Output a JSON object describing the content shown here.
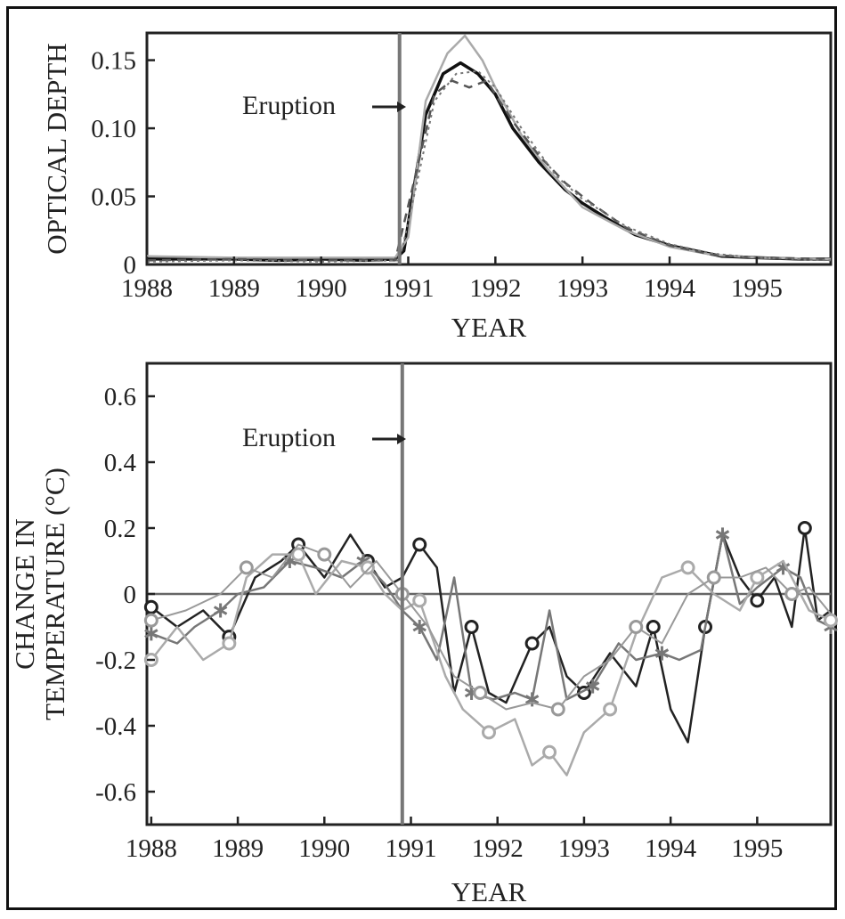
{
  "chart_data": [
    {
      "type": "line",
      "xlabel": "YEAR",
      "ylabel": "OPTICAL DEPTH",
      "xlim": [
        1988,
        1995.85
      ],
      "ylim": [
        0,
        0.17
      ],
      "x_ticks": [
        "1988",
        "1989",
        "1990",
        "1991",
        "1992",
        "1993",
        "1994",
        "1995"
      ],
      "y_ticks": [
        "0",
        "0.05",
        "0.10",
        "0.15"
      ],
      "annotation": "Eruption",
      "eruption_x": 1990.9,
      "series": [
        {
          "style": "solid",
          "points": [
            [
              1988,
              0.004
            ],
            [
              1988.5,
              0.004
            ],
            [
              1989,
              0.004
            ],
            [
              1989.5,
              0.003
            ],
            [
              1990,
              0.004
            ],
            [
              1990.5,
              0.003
            ],
            [
              1990.85,
              0.004
            ],
            [
              1990.95,
              0.01
            ],
            [
              1991.05,
              0.05
            ],
            [
              1991.2,
              0.11
            ],
            [
              1991.4,
              0.14
            ],
            [
              1991.6,
              0.148
            ],
            [
              1991.8,
              0.14
            ],
            [
              1992,
              0.125
            ],
            [
              1992.2,
              0.1
            ],
            [
              1992.5,
              0.075
            ],
            [
              1992.8,
              0.055
            ],
            [
              1993,
              0.045
            ],
            [
              1993.3,
              0.033
            ],
            [
              1993.6,
              0.022
            ],
            [
              1994,
              0.014
            ],
            [
              1994.3,
              0.01
            ],
            [
              1994.6,
              0.006
            ],
            [
              1995,
              0.005
            ],
            [
              1995.5,
              0.004
            ],
            [
              1995.85,
              0.004
            ]
          ]
        },
        {
          "style": "light",
          "points": [
            [
              1988,
              0.006
            ],
            [
              1989,
              0.005
            ],
            [
              1990,
              0.005
            ],
            [
              1990.85,
              0.005
            ],
            [
              1991,
              0.02
            ],
            [
              1991.2,
              0.12
            ],
            [
              1991.45,
              0.155
            ],
            [
              1991.65,
              0.168
            ],
            [
              1991.85,
              0.15
            ],
            [
              1992,
              0.13
            ],
            [
              1992.3,
              0.095
            ],
            [
              1992.6,
              0.07
            ],
            [
              1993,
              0.042
            ],
            [
              1993.5,
              0.025
            ],
            [
              1994,
              0.013
            ],
            [
              1994.5,
              0.007
            ],
            [
              1995,
              0.005
            ],
            [
              1995.85,
              0.004
            ]
          ]
        },
        {
          "style": "dashed",
          "points": [
            [
              1988,
              0.003
            ],
            [
              1989,
              0.004
            ],
            [
              1990,
              0.003
            ],
            [
              1990.85,
              0.003
            ],
            [
              1991.1,
              0.07
            ],
            [
              1991.3,
              0.125
            ],
            [
              1991.5,
              0.135
            ],
            [
              1991.7,
              0.13
            ],
            [
              1991.9,
              0.135
            ],
            [
              1992.2,
              0.105
            ],
            [
              1992.5,
              0.08
            ],
            [
              1992.8,
              0.06
            ],
            [
              1993.1,
              0.045
            ],
            [
              1993.5,
              0.027
            ],
            [
              1994,
              0.014
            ],
            [
              1994.5,
              0.007
            ],
            [
              1995,
              0.005
            ],
            [
              1995.85,
              0.004
            ]
          ]
        },
        {
          "style": "dotted",
          "points": [
            [
              1988,
              0.002
            ],
            [
              1989,
              0.003
            ],
            [
              1990,
              0.002
            ],
            [
              1990.9,
              0.003
            ],
            [
              1991.1,
              0.06
            ],
            [
              1991.3,
              0.12
            ],
            [
              1991.55,
              0.14
            ],
            [
              1991.8,
              0.142
            ],
            [
              1992,
              0.13
            ],
            [
              1992.3,
              0.1
            ],
            [
              1992.7,
              0.065
            ],
            [
              1993,
              0.048
            ],
            [
              1993.5,
              0.028
            ],
            [
              1994,
              0.015
            ],
            [
              1994.5,
              0.008
            ],
            [
              1995,
              0.005
            ],
            [
              1995.85,
              0.003
            ]
          ]
        }
      ]
    },
    {
      "type": "line",
      "xlabel": "YEAR",
      "ylabel_lines": [
        "CHANGE IN",
        "TEMPERATURE (°C)"
      ],
      "xlim": [
        1987.95,
        1995.85
      ],
      "ylim": [
        -0.7,
        0.7
      ],
      "x_ticks": [
        "1988",
        "1989",
        "1990",
        "1991",
        "1992",
        "1993",
        "1994",
        "1995"
      ],
      "y_ticks": [
        "-0.6",
        "-0.4",
        "-0.2",
        "0",
        "0.2",
        "0.4",
        "0.6"
      ],
      "annotation": "Eruption",
      "eruption_x": 1990.9,
      "series": [
        {
          "style": "dark",
          "marker": "o",
          "points": [
            [
              1988,
              -0.04
            ],
            [
              1988.3,
              -0.1
            ],
            [
              1988.6,
              -0.05
            ],
            [
              1988.9,
              -0.13
            ],
            [
              1989.2,
              0.05
            ],
            [
              1989.5,
              0.1
            ],
            [
              1989.7,
              0.15
            ],
            [
              1990,
              0.05
            ],
            [
              1990.3,
              0.18
            ],
            [
              1990.5,
              0.1
            ],
            [
              1990.7,
              0.02
            ],
            [
              1990.9,
              0.05
            ],
            [
              1991.1,
              0.15
            ],
            [
              1991.3,
              0.08
            ],
            [
              1991.5,
              -0.3
            ],
            [
              1991.7,
              -0.1
            ],
            [
              1991.9,
              -0.3
            ],
            [
              1992.1,
              -0.33
            ],
            [
              1992.4,
              -0.15
            ],
            [
              1992.6,
              -0.1
            ],
            [
              1992.8,
              -0.25
            ],
            [
              1993,
              -0.3
            ],
            [
              1993.3,
              -0.18
            ],
            [
              1993.6,
              -0.28
            ],
            [
              1993.8,
              -0.1
            ],
            [
              1994,
              -0.35
            ],
            [
              1994.2,
              -0.45
            ],
            [
              1994.4,
              -0.1
            ],
            [
              1994.6,
              0.18
            ],
            [
              1994.8,
              0.05
            ],
            [
              1995,
              -0.02
            ],
            [
              1995.2,
              0.05
            ],
            [
              1995.4,
              -0.1
            ],
            [
              1995.55,
              0.2
            ],
            [
              1995.7,
              -0.08
            ],
            [
              1995.85,
              -0.05
            ]
          ]
        },
        {
          "style": "gray",
          "marker": "*",
          "points": [
            [
              1988,
              -0.12
            ],
            [
              1988.3,
              -0.15
            ],
            [
              1988.5,
              -0.1
            ],
            [
              1988.8,
              -0.05
            ],
            [
              1989,
              0.0
            ],
            [
              1989.3,
              0.02
            ],
            [
              1989.6,
              0.1
            ],
            [
              1989.9,
              0.08
            ],
            [
              1990.2,
              0.05
            ],
            [
              1990.45,
              0.1
            ],
            [
              1990.7,
              0.03
            ],
            [
              1990.9,
              -0.05
            ],
            [
              1991.1,
              -0.1
            ],
            [
              1991.3,
              -0.2
            ],
            [
              1991.5,
              0.05
            ],
            [
              1991.7,
              -0.3
            ],
            [
              1991.95,
              -0.32
            ],
            [
              1992.2,
              -0.3
            ],
            [
              1992.4,
              -0.32
            ],
            [
              1992.6,
              -0.05
            ],
            [
              1992.8,
              -0.32
            ],
            [
              1993.1,
              -0.28
            ],
            [
              1993.4,
              -0.15
            ],
            [
              1993.6,
              -0.2
            ],
            [
              1993.9,
              -0.18
            ],
            [
              1994.1,
              -0.2
            ],
            [
              1994.35,
              -0.17
            ],
            [
              1994.6,
              0.18
            ],
            [
              1994.8,
              -0.03
            ],
            [
              1995,
              0.02
            ],
            [
              1995.3,
              0.08
            ],
            [
              1995.5,
              0.05
            ],
            [
              1995.7,
              -0.08
            ],
            [
              1995.85,
              -0.1
            ]
          ]
        },
        {
          "style": "light",
          "marker": "o",
          "points": [
            [
              1988,
              -0.2
            ],
            [
              1988.3,
              -0.1
            ],
            [
              1988.6,
              -0.2
            ],
            [
              1988.9,
              -0.15
            ],
            [
              1989.1,
              0.05
            ],
            [
              1989.4,
              0.12
            ],
            [
              1989.7,
              0.12
            ],
            [
              1989.9,
              0.0
            ],
            [
              1990.2,
              0.1
            ],
            [
              1990.5,
              0.08
            ],
            [
              1990.7,
              0.0
            ],
            [
              1990.9,
              -0.05
            ],
            [
              1991.1,
              -0.02
            ],
            [
              1991.4,
              -0.25
            ],
            [
              1991.6,
              -0.35
            ],
            [
              1991.9,
              -0.42
            ],
            [
              1992.2,
              -0.38
            ],
            [
              1992.4,
              -0.52
            ],
            [
              1992.6,
              -0.48
            ],
            [
              1992.8,
              -0.55
            ],
            [
              1993,
              -0.42
            ],
            [
              1993.3,
              -0.35
            ],
            [
              1993.6,
              -0.12
            ],
            [
              1993.9,
              0.05
            ],
            [
              1994.2,
              0.08
            ],
            [
              1994.5,
              0.0
            ],
            [
              1994.8,
              -0.05
            ],
            [
              1995,
              0.05
            ],
            [
              1995.3,
              0.1
            ],
            [
              1995.6,
              -0.05
            ],
            [
              1995.85,
              -0.08
            ]
          ]
        },
        {
          "style": "mid",
          "marker": "o",
          "points": [
            [
              1988,
              -0.08
            ],
            [
              1988.4,
              -0.05
            ],
            [
              1988.8,
              0.0
            ],
            [
              1989.1,
              0.08
            ],
            [
              1989.4,
              0.05
            ],
            [
              1989.7,
              0.15
            ],
            [
              1990,
              0.12
            ],
            [
              1990.3,
              0.02
            ],
            [
              1990.6,
              0.1
            ],
            [
              1990.9,
              0.0
            ],
            [
              1991.2,
              -0.1
            ],
            [
              1991.5,
              -0.25
            ],
            [
              1991.8,
              -0.3
            ],
            [
              1992.1,
              -0.35
            ],
            [
              1992.4,
              -0.33
            ],
            [
              1992.7,
              -0.35
            ],
            [
              1993,
              -0.25
            ],
            [
              1993.3,
              -0.2
            ],
            [
              1993.6,
              -0.1
            ],
            [
              1993.9,
              -0.15
            ],
            [
              1994.2,
              0.0
            ],
            [
              1994.5,
              0.05
            ],
            [
              1994.8,
              0.05
            ],
            [
              1995.1,
              0.08
            ],
            [
              1995.4,
              0.0
            ],
            [
              1995.6,
              0.02
            ],
            [
              1995.85,
              -0.06
            ]
          ]
        }
      ]
    }
  ]
}
